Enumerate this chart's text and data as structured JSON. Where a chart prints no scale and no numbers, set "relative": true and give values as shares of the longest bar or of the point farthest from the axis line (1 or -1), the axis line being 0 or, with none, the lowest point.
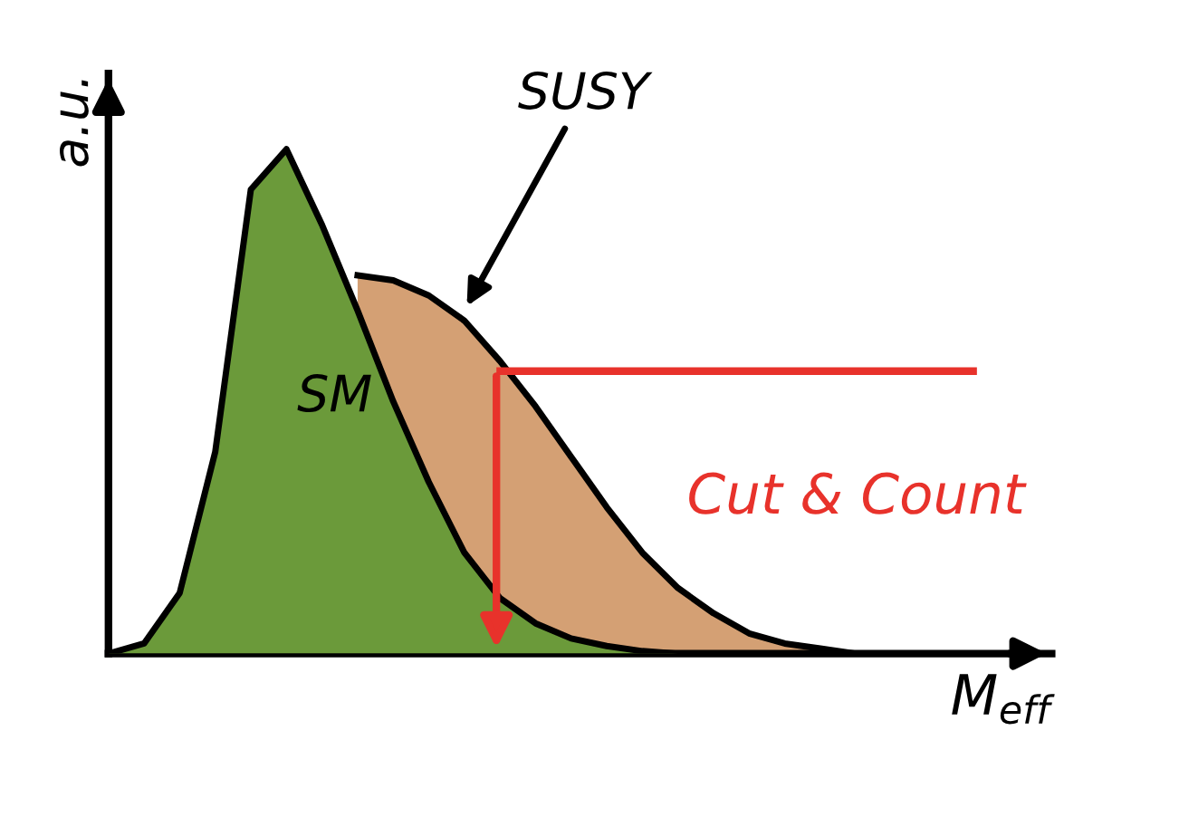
{
  "chart_data": {
    "type": "area",
    "relative": true,
    "xlabel": "M$_{eff}$",
    "ylabel": "a.u.",
    "categories": [
      null,
      null,
      null,
      null,
      null,
      null,
      null,
      null,
      null,
      null,
      null,
      null,
      null,
      null,
      null,
      null,
      null,
      null,
      null,
      null,
      null,
      null
    ],
    "series": [
      {
        "name": "SUSY",
        "color": "#d4a074",
        "values": [
          null,
          null,
          null,
          null,
          null,
          null,
          null,
          0.75,
          0.74,
          0.71,
          0.66,
          0.58,
          0.49,
          0.39,
          0.29,
          0.2,
          0.13,
          0.08,
          0.04,
          0.02,
          0.01,
          0
        ]
      },
      {
        "name": "SM",
        "color": "#6b9a3a",
        "values": [
          0,
          0.02,
          0.12,
          0.4,
          0.92,
          1,
          0.85,
          0.68,
          0.5,
          0.34,
          0.2,
          0.11,
          0.06,
          0.03,
          0.015,
          0.005,
          0,
          0,
          0,
          0,
          0,
          0
        ]
      }
    ],
    "ref_lines": [
      {
        "axis": "y",
        "value": 0.56,
        "label": "Cut & Count",
        "color": "#e8322b"
      }
    ]
  }
}
